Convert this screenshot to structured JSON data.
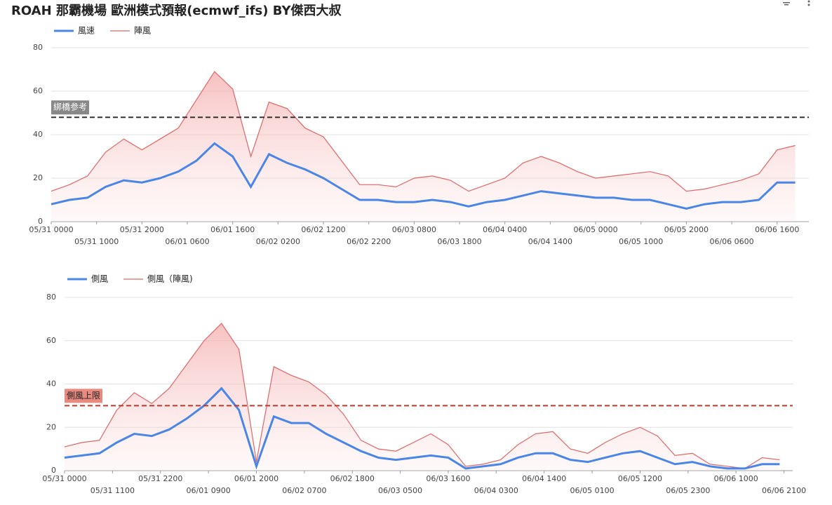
{
  "title": "ROAH 那霸機場 歐洲模式預報(ecmwf_ifs) BY傑西大叔",
  "chart_data": [
    {
      "type": "line",
      "x": [
        0,
        4,
        8,
        12,
        16,
        20,
        24,
        28,
        32,
        36,
        40,
        44,
        48,
        52,
        56,
        60,
        64,
        68,
        72,
        76,
        80,
        84,
        88,
        92,
        96,
        100,
        104,
        108,
        112,
        116,
        120,
        124,
        128,
        132,
        136,
        140,
        144,
        148,
        152,
        156,
        160,
        164
      ],
      "series": [
        {
          "name": "風速",
          "color": "#4a86e8",
          "values": [
            8,
            10,
            11,
            16,
            19,
            18,
            20,
            23,
            28,
            36,
            30,
            16,
            31,
            27,
            24,
            20,
            15,
            10,
            10,
            9,
            9,
            10,
            9,
            7,
            9,
            10,
            12,
            14,
            13,
            12,
            11,
            11,
            10,
            10,
            8,
            6,
            8,
            9,
            9,
            10,
            18,
            18
          ]
        },
        {
          "name": "陣風",
          "color": "#e06666",
          "values": [
            14,
            17,
            21,
            32,
            38,
            33,
            38,
            43,
            56,
            69,
            61,
            30,
            55,
            52,
            43,
            39,
            28,
            17,
            17,
            16,
            20,
            21,
            19,
            14,
            17,
            20,
            27,
            30,
            27,
            23,
            20,
            21,
            22,
            23,
            21,
            14,
            15,
            17,
            19,
            22,
            33,
            35
          ]
        }
      ],
      "xlim": [
        0,
        167
      ],
      "xticks": [
        {
          "value": 0,
          "label": "05/31 0000"
        },
        {
          "value": 10,
          "label": "05/31 1000"
        },
        {
          "value": 20,
          "label": "05/31 2000"
        },
        {
          "value": 30,
          "label": "06/01 0600"
        },
        {
          "value": 40,
          "label": "06/01 1600"
        },
        {
          "value": 50,
          "label": "06/02 0200"
        },
        {
          "value": 60,
          "label": "06/02 1200"
        },
        {
          "value": 70,
          "label": "06/02 2200"
        },
        {
          "value": 80,
          "label": "06/03 0800"
        },
        {
          "value": 90,
          "label": "06/03 1800"
        },
        {
          "value": 100,
          "label": "06/04 0400"
        },
        {
          "value": 110,
          "label": "06/04 1400"
        },
        {
          "value": 120,
          "label": "06/05 0000"
        },
        {
          "value": 130,
          "label": "06/05 1000"
        },
        {
          "value": 140,
          "label": "06/05 2000"
        },
        {
          "value": 150,
          "label": "06/06 0600"
        },
        {
          "value": 160,
          "label": "06/06 1600"
        }
      ],
      "ylim": [
        0,
        80
      ],
      "yticks": [
        0,
        20,
        40,
        60,
        80
      ],
      "grid": true,
      "reference_line": {
        "value": 48,
        "label": "綁橋参考",
        "color": "#333333"
      }
    },
    {
      "type": "line",
      "x": [
        0,
        4,
        8,
        12,
        16,
        20,
        24,
        28,
        32,
        36,
        40,
        44,
        48,
        52,
        56,
        60,
        64,
        68,
        72,
        76,
        80,
        84,
        88,
        92,
        96,
        100,
        104,
        108,
        112,
        116,
        120,
        124,
        128,
        132,
        136,
        140,
        144,
        148,
        152,
        156,
        160,
        164
      ],
      "series": [
        {
          "name": "側風",
          "color": "#4a86e8",
          "values": [
            6,
            7,
            8,
            13,
            17,
            16,
            19,
            24,
            30,
            38,
            28,
            2,
            25,
            22,
            22,
            17,
            13,
            9,
            6,
            5,
            6,
            7,
            6,
            1,
            2,
            3,
            6,
            8,
            8,
            5,
            4,
            6,
            8,
            9,
            6,
            3,
            4,
            2,
            1,
            1,
            3,
            3
          ]
        },
        {
          "name": "側風（陣風)",
          "color": "#e06666",
          "values": [
            11,
            13,
            14,
            28,
            36,
            31,
            38,
            49,
            60,
            68,
            56,
            4,
            48,
            44,
            41,
            35,
            26,
            14,
            10,
            9,
            13,
            17,
            12,
            2,
            3,
            5,
            12,
            17,
            18,
            10,
            8,
            13,
            17,
            20,
            16,
            7,
            8,
            3,
            2,
            1,
            6,
            5
          ]
        }
      ],
      "xlim": [
        0,
        167
      ],
      "xticks": [
        {
          "value": 0,
          "label": "05/31 0000"
        },
        {
          "value": 11,
          "label": "05/31 1100"
        },
        {
          "value": 22,
          "label": "05/31 2200"
        },
        {
          "value": 33,
          "label": "06/01 0900"
        },
        {
          "value": 44,
          "label": "06/01 2000"
        },
        {
          "value": 55,
          "label": "06/02 0700"
        },
        {
          "value": 66,
          "label": "06/02 1800"
        },
        {
          "value": 77,
          "label": "06/03 0500"
        },
        {
          "value": 88,
          "label": "06/03 1600"
        },
        {
          "value": 99,
          "label": "06/04 0300"
        },
        {
          "value": 110,
          "label": "06/04 1400"
        },
        {
          "value": 121,
          "label": "06/05 0100"
        },
        {
          "value": 132,
          "label": "06/05 1200"
        },
        {
          "value": 143,
          "label": "06/05 2300"
        },
        {
          "value": 154,
          "label": "06/06 1000"
        },
        {
          "value": 165,
          "label": "06/06 2100"
        }
      ],
      "ylim": [
        0,
        80
      ],
      "yticks": [
        0,
        20,
        40,
        60,
        80
      ],
      "grid": true,
      "reference_line": {
        "value": 30,
        "label": "側風上限",
        "color": "#c0392b"
      }
    }
  ]
}
